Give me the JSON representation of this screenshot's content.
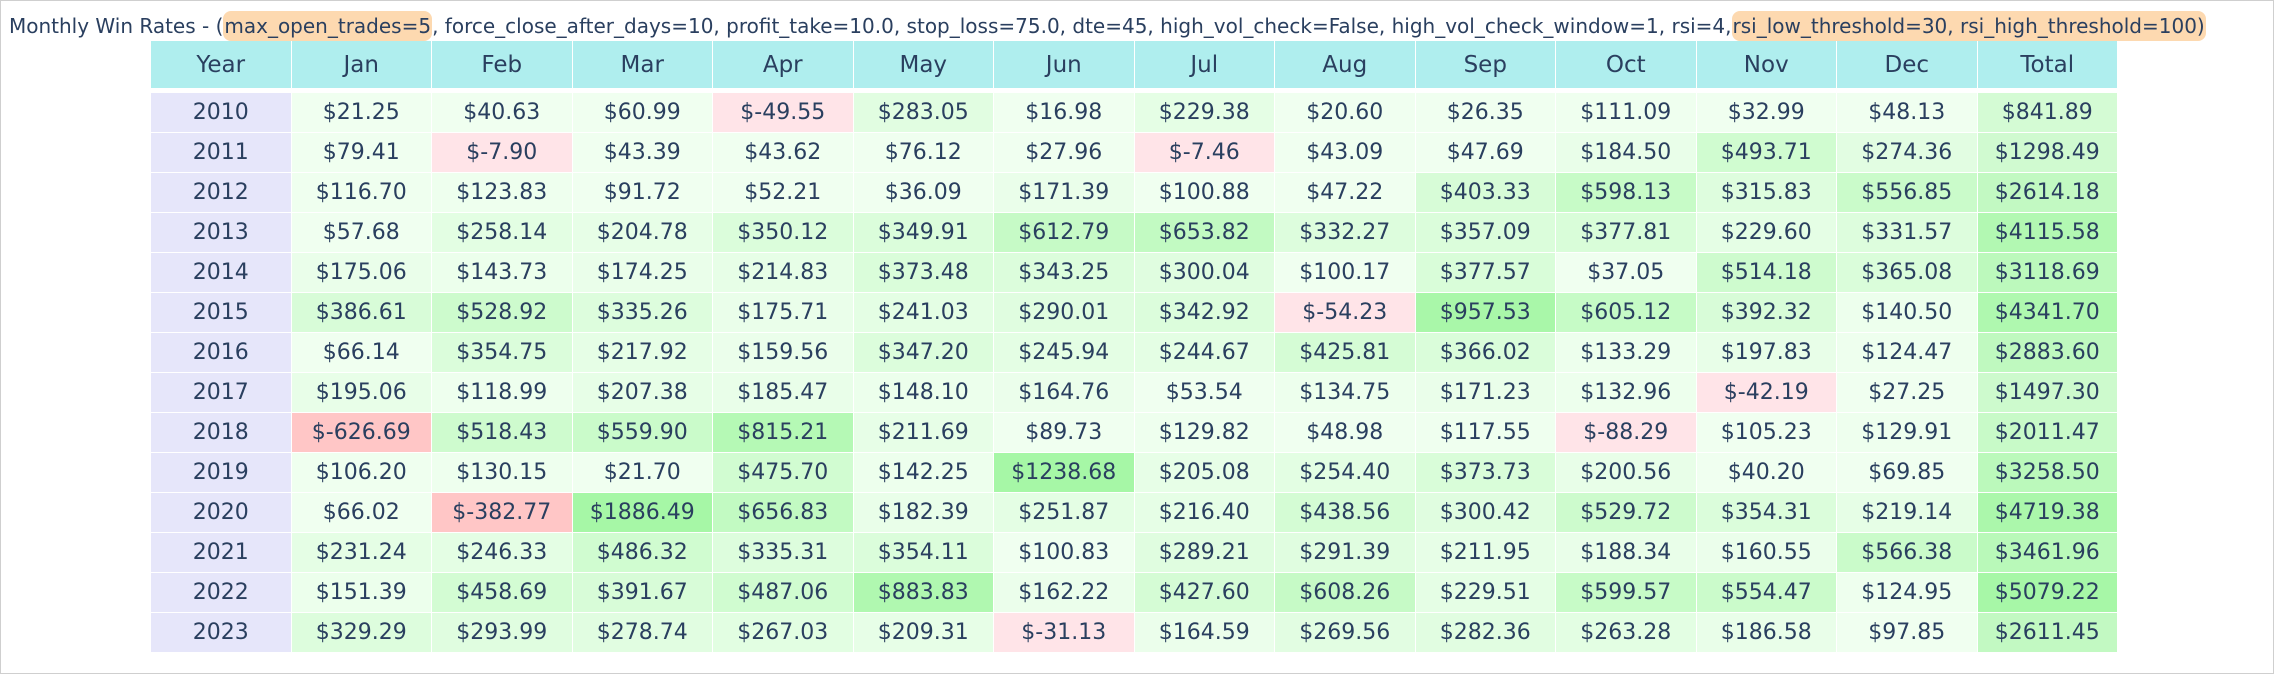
{
  "title": {
    "prefix": "Monthly Win Rates - (",
    "hl1": "max_open_trades=5",
    "middle": ", force_close_after_days=10, profit_take=10.0, stop_loss=75.0, dte=45, high_vol_check=False, high_vol_check_window=1, rsi=4, ",
    "hl2": "rsi_low_threshold=30, rsi_high_threshold=100)"
  },
  "colors": {
    "header_bg": "#afeeee",
    "year_bg": "#e6e6fa",
    "negative_light": "#ffe4e8",
    "negative_strong": "#ffc6c6",
    "positive_base": "#f0fff0",
    "positive_strong": "#a6f7a6",
    "highlight": "#fdd9b0",
    "text": "#2a3f5f"
  },
  "chart_data": {
    "type": "table",
    "columns": [
      "Year",
      "Jan",
      "Feb",
      "Mar",
      "Apr",
      "May",
      "Jun",
      "Jul",
      "Aug",
      "Sep",
      "Oct",
      "Nov",
      "Dec",
      "Total"
    ],
    "rows": [
      {
        "year": "2010",
        "values": [
          "$21.25",
          "$40.63",
          "$60.99",
          "$-49.55",
          "$283.05",
          "$16.98",
          "$229.38",
          "$20.60",
          "$26.35",
          "$111.09",
          "$32.99",
          "$48.13",
          "$841.89"
        ]
      },
      {
        "year": "2011",
        "values": [
          "$79.41",
          "$-7.90",
          "$43.39",
          "$43.62",
          "$76.12",
          "$27.96",
          "$-7.46",
          "$43.09",
          "$47.69",
          "$184.50",
          "$493.71",
          "$274.36",
          "$1298.49"
        ]
      },
      {
        "year": "2012",
        "values": [
          "$116.70",
          "$123.83",
          "$91.72",
          "$52.21",
          "$36.09",
          "$171.39",
          "$100.88",
          "$47.22",
          "$403.33",
          "$598.13",
          "$315.83",
          "$556.85",
          "$2614.18"
        ]
      },
      {
        "year": "2013",
        "values": [
          "$57.68",
          "$258.14",
          "$204.78",
          "$350.12",
          "$349.91",
          "$612.79",
          "$653.82",
          "$332.27",
          "$357.09",
          "$377.81",
          "$229.60",
          "$331.57",
          "$4115.58"
        ]
      },
      {
        "year": "2014",
        "values": [
          "$175.06",
          "$143.73",
          "$174.25",
          "$214.83",
          "$373.48",
          "$343.25",
          "$300.04",
          "$100.17",
          "$377.57",
          "$37.05",
          "$514.18",
          "$365.08",
          "$3118.69"
        ]
      },
      {
        "year": "2015",
        "values": [
          "$386.61",
          "$528.92",
          "$335.26",
          "$175.71",
          "$241.03",
          "$290.01",
          "$342.92",
          "$-54.23",
          "$957.53",
          "$605.12",
          "$392.32",
          "$140.50",
          "$4341.70"
        ]
      },
      {
        "year": "2016",
        "values": [
          "$66.14",
          "$354.75",
          "$217.92",
          "$159.56",
          "$347.20",
          "$245.94",
          "$244.67",
          "$425.81",
          "$366.02",
          "$133.29",
          "$197.83",
          "$124.47",
          "$2883.60"
        ]
      },
      {
        "year": "2017",
        "values": [
          "$195.06",
          "$118.99",
          "$207.38",
          "$185.47",
          "$148.10",
          "$164.76",
          "$53.54",
          "$134.75",
          "$171.23",
          "$132.96",
          "$-42.19",
          "$27.25",
          "$1497.30"
        ]
      },
      {
        "year": "2018",
        "values": [
          "$-626.69",
          "$518.43",
          "$559.90",
          "$815.21",
          "$211.69",
          "$89.73",
          "$129.82",
          "$48.98",
          "$117.55",
          "$-88.29",
          "$105.23",
          "$129.91",
          "$2011.47"
        ]
      },
      {
        "year": "2019",
        "values": [
          "$106.20",
          "$130.15",
          "$21.70",
          "$475.70",
          "$142.25",
          "$1238.68",
          "$205.08",
          "$254.40",
          "$373.73",
          "$200.56",
          "$40.20",
          "$69.85",
          "$3258.50"
        ]
      },
      {
        "year": "2020",
        "values": [
          "$66.02",
          "$-382.77",
          "$1886.49",
          "$656.83",
          "$182.39",
          "$251.87",
          "$216.40",
          "$438.56",
          "$300.42",
          "$529.72",
          "$354.31",
          "$219.14",
          "$4719.38"
        ]
      },
      {
        "year": "2021",
        "values": [
          "$231.24",
          "$246.33",
          "$486.32",
          "$335.31",
          "$354.11",
          "$100.83",
          "$289.21",
          "$291.39",
          "$211.95",
          "$188.34",
          "$160.55",
          "$566.38",
          "$3461.96"
        ]
      },
      {
        "year": "2022",
        "values": [
          "$151.39",
          "$458.69",
          "$391.67",
          "$487.06",
          "$883.83",
          "$162.22",
          "$427.60",
          "$608.26",
          "$229.51",
          "$599.57",
          "$554.47",
          "$124.95",
          "$5079.22"
        ]
      },
      {
        "year": "2023",
        "values": [
          "$329.29",
          "$293.99",
          "$278.74",
          "$267.03",
          "$209.31",
          "$-31.13",
          "$164.59",
          "$269.56",
          "$282.36",
          "$263.28",
          "$186.58",
          "$97.85",
          "$2611.45"
        ]
      }
    ]
  }
}
